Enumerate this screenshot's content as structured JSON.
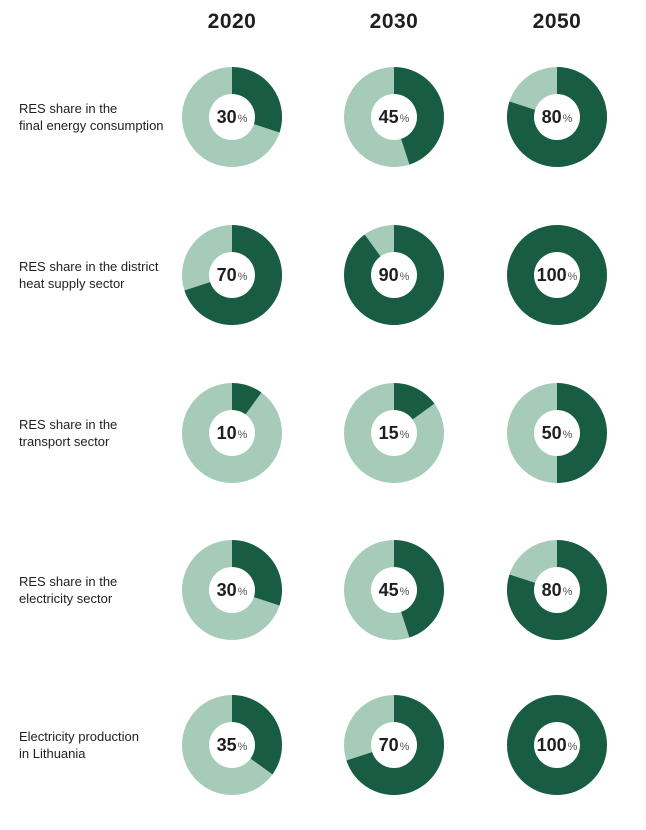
{
  "colors": {
    "filled": "#175c43",
    "remaining": "#a6cbb9",
    "center": "#ffffff",
    "text": "#1f1f1f"
  },
  "chart_data": {
    "type": "pie",
    "style": "donut-grid",
    "years": [
      "2020",
      "2030",
      "2050"
    ],
    "unit": "%",
    "rows": [
      {
        "label_lines": [
          "RES share in the",
          "final energy consumption"
        ],
        "values": [
          30,
          45,
          80
        ]
      },
      {
        "label_lines": [
          "RES share in the district",
          "heat supply sector"
        ],
        "values": [
          70,
          90,
          100
        ]
      },
      {
        "label_lines": [
          "RES share in the",
          "transport sector"
        ],
        "values": [
          10,
          15,
          50
        ]
      },
      {
        "label_lines": [
          "RES share in the",
          "electricity sector"
        ],
        "values": [
          30,
          45,
          80
        ]
      },
      {
        "label_lines": [
          "Electricity production",
          "in Lithuania"
        ],
        "values": [
          35,
          70,
          100
        ]
      }
    ]
  }
}
